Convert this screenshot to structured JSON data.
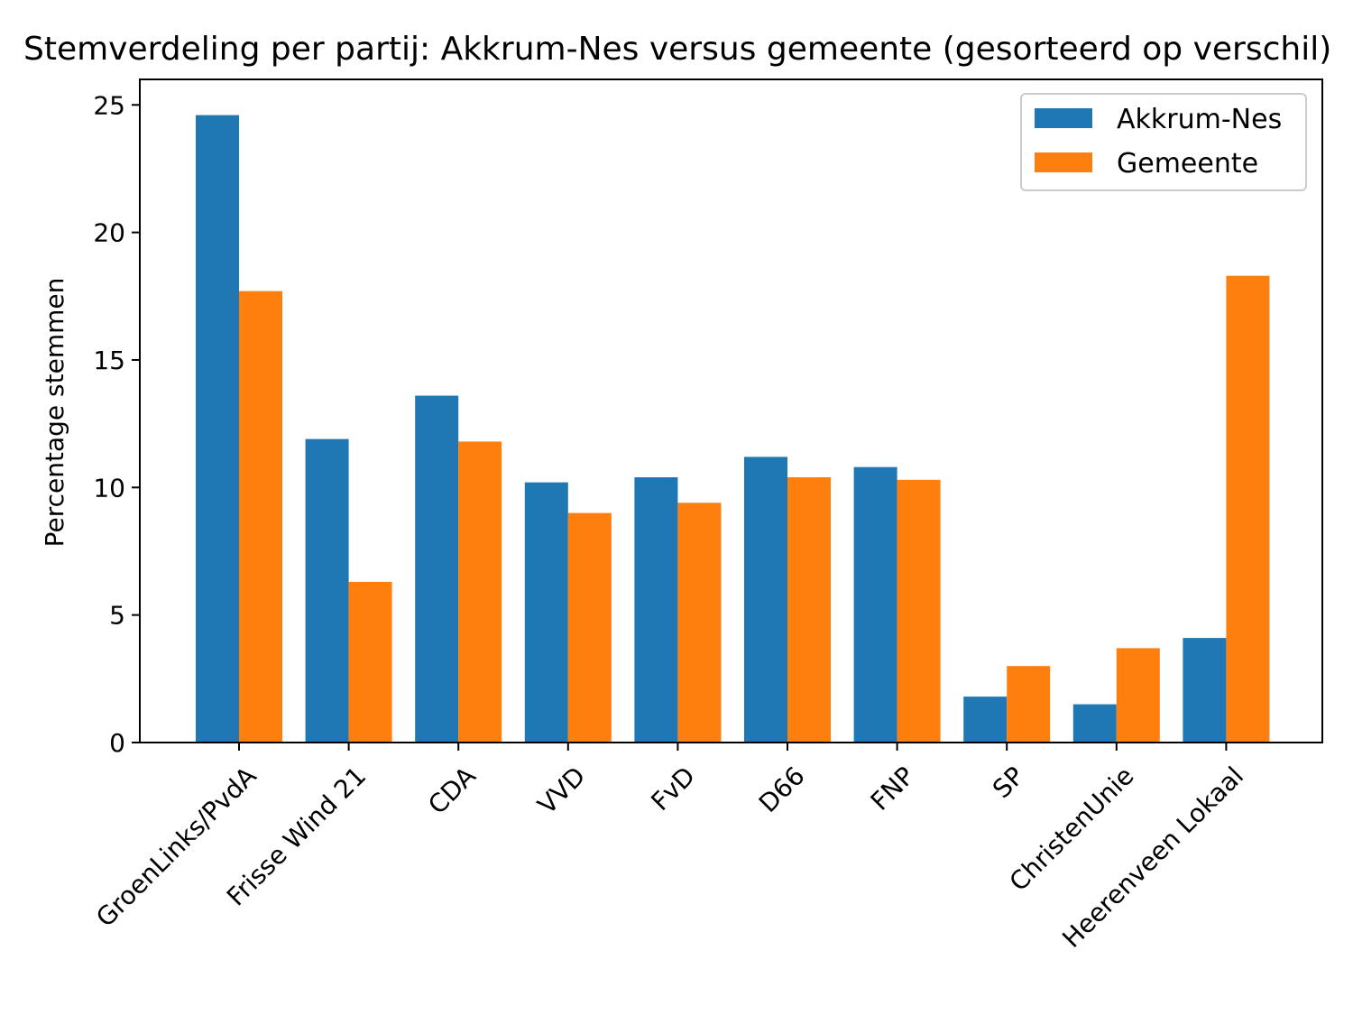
{
  "chart_data": {
    "type": "bar",
    "title": "Stemverdeling per partij: Akkrum-Nes versus gemeente (gesorteerd op verschil)",
    "xlabel": "",
    "ylabel": "Percentage stemmen",
    "ylim": [
      0,
      26
    ],
    "yticks": [
      0,
      5,
      10,
      15,
      20,
      25
    ],
    "grid": false,
    "legend_position": "top-right",
    "categories": [
      "GroenLinks/PvdA",
      "Frisse Wind 21",
      "CDA",
      "VVD",
      "FvD",
      "D66",
      "FNP",
      "SP",
      "ChristenUnie",
      "Heerenveen Lokaal"
    ],
    "series": [
      {
        "name": "Akkrum-Nes",
        "color": "#1f77b4",
        "values": [
          24.6,
          11.9,
          13.6,
          10.2,
          10.4,
          11.2,
          10.8,
          1.8,
          1.5,
          4.1
        ]
      },
      {
        "name": "Gemeente",
        "color": "#ff7f0e",
        "values": [
          17.7,
          6.3,
          11.8,
          9.0,
          9.4,
          10.4,
          10.3,
          3.0,
          3.7,
          18.3
        ]
      }
    ]
  }
}
